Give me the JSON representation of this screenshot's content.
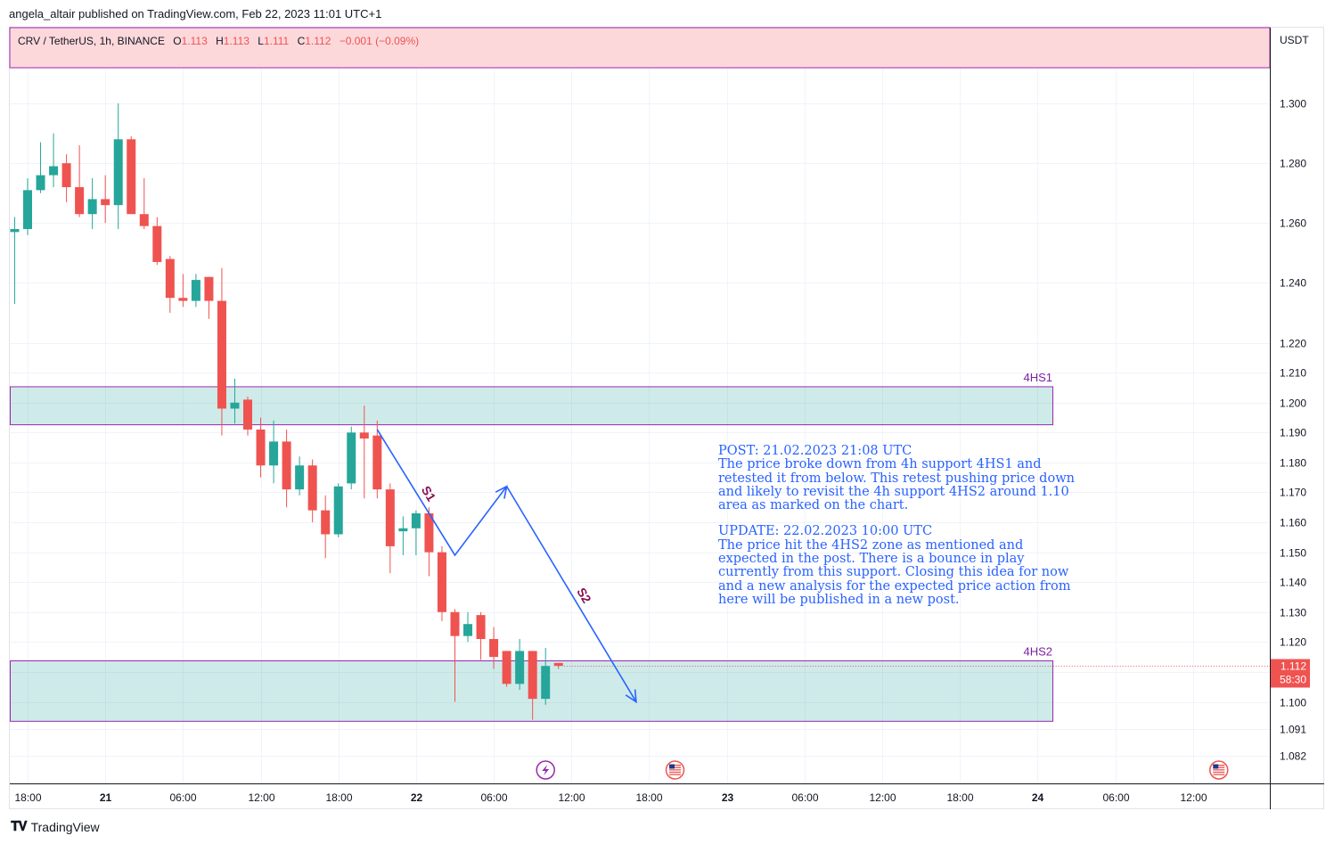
{
  "header": {
    "published_by": "angela_altair published on TradingView.com, Feb 22, 2023 11:01 UTC+1"
  },
  "legend": {
    "symbol": "CRV / TetherUS, 1h, BINANCE",
    "open_label": "O",
    "open": "1.113",
    "high_label": "H",
    "high": "1.113",
    "low_label": "L",
    "low": "1.111",
    "close_label": "C",
    "close": "1.112",
    "change": "−0.001 (−0.09%)"
  },
  "price_axis": {
    "currency": "USDT"
  },
  "last_price": {
    "value": "1.112",
    "countdown": "58:30"
  },
  "zones": [
    {
      "label": "4HS1",
      "low": 1.1926,
      "high": 1.2053,
      "color": "#26a69a"
    },
    {
      "label": "4HS2",
      "low": 1.0935,
      "high": 1.1137,
      "color": "#26a69a"
    }
  ],
  "annotations": {
    "s1": "S1",
    "s2": "S2",
    "post_title": "POST: 21.02.2023 21:08 UTC",
    "post_body": "The price broke down from 4h support 4HS1 and retested it from below. This retest pushing price down and likely to revisit the 4h support 4HS2 around 1.10 area as marked on the chart.",
    "update_title": "UPDATE: 22.02.2023 10:00 UTC",
    "update_body": "The price hit the 4HS2 zone as mentioned and expected in the post. There is a bounce in play currently from this support. Closing this idea for now and a new analysis for the expected price action from here will be published in a new post."
  },
  "branding": {
    "name": "TradingView"
  },
  "colors": {
    "up": "#26a69a",
    "down": "#ef5350",
    "arrow": "#2962ff",
    "zone_border": "#9c27b0",
    "header_band": "#fdd8db"
  },
  "event_icons": [
    "lightning-icon",
    "us-flag-icon",
    "us-flag-icon"
  ],
  "chart_data": {
    "type": "candlestick",
    "interval": "1h",
    "ylim": [
      1.078,
      1.306
    ],
    "y_ticks": [
      1.082,
      1.091,
      1.1,
      1.11,
      1.12,
      1.13,
      1.14,
      1.15,
      1.16,
      1.17,
      1.18,
      1.19,
      1.2,
      1.21,
      1.22,
      1.24,
      1.26,
      1.28,
      1.3
    ],
    "x_ticks": [
      {
        "t": "2023-02-20T18:00",
        "label": "18:00"
      },
      {
        "t": "2023-02-21T00:00",
        "label": "21"
      },
      {
        "t": "2023-02-21T06:00",
        "label": "06:00"
      },
      {
        "t": "2023-02-21T12:00",
        "label": "12:00"
      },
      {
        "t": "2023-02-21T18:00",
        "label": "18:00"
      },
      {
        "t": "2023-02-22T00:00",
        "label": "22"
      },
      {
        "t": "2023-02-22T06:00",
        "label": "06:00"
      },
      {
        "t": "2023-02-22T12:00",
        "label": "12:00"
      },
      {
        "t": "2023-02-22T18:00",
        "label": "18:00"
      },
      {
        "t": "2023-02-23T00:00",
        "label": "23"
      },
      {
        "t": "2023-02-23T06:00",
        "label": "06:00"
      },
      {
        "t": "2023-02-23T12:00",
        "label": "12:00"
      },
      {
        "t": "2023-02-23T18:00",
        "label": "18:00"
      },
      {
        "t": "2023-02-24T00:00",
        "label": "24"
      },
      {
        "t": "2023-02-24T06:00",
        "label": "06:00"
      },
      {
        "t": "2023-02-24T12:00",
        "label": "12:00"
      }
    ],
    "candles": [
      {
        "t": "2023-02-20T17:00",
        "o": 1.257,
        "h": 1.262,
        "l": 1.233,
        "c": 1.258
      },
      {
        "t": "2023-02-20T18:00",
        "o": 1.258,
        "h": 1.275,
        "l": 1.256,
        "c": 1.271
      },
      {
        "t": "2023-02-20T19:00",
        "o": 1.271,
        "h": 1.287,
        "l": 1.27,
        "c": 1.276
      },
      {
        "t": "2023-02-20T20:00",
        "o": 1.276,
        "h": 1.29,
        "l": 1.272,
        "c": 1.279
      },
      {
        "t": "2023-02-20T21:00",
        "o": 1.28,
        "h": 1.283,
        "l": 1.267,
        "c": 1.272
      },
      {
        "t": "2023-02-20T22:00",
        "o": 1.272,
        "h": 1.286,
        "l": 1.262,
        "c": 1.263
      },
      {
        "t": "2023-02-20T23:00",
        "o": 1.263,
        "h": 1.275,
        "l": 1.258,
        "c": 1.268
      },
      {
        "t": "2023-02-21T00:00",
        "o": 1.268,
        "h": 1.276,
        "l": 1.26,
        "c": 1.266
      },
      {
        "t": "2023-02-21T01:00",
        "o": 1.266,
        "h": 1.3,
        "l": 1.258,
        "c": 1.288
      },
      {
        "t": "2023-02-21T02:00",
        "o": 1.288,
        "h": 1.289,
        "l": 1.263,
        "c": 1.263
      },
      {
        "t": "2023-02-21T03:00",
        "o": 1.263,
        "h": 1.275,
        "l": 1.258,
        "c": 1.259
      },
      {
        "t": "2023-02-21T04:00",
        "o": 1.259,
        "h": 1.262,
        "l": 1.246,
        "c": 1.247
      },
      {
        "t": "2023-02-21T05:00",
        "o": 1.248,
        "h": 1.249,
        "l": 1.23,
        "c": 1.235
      },
      {
        "t": "2023-02-21T06:00",
        "o": 1.235,
        "h": 1.243,
        "l": 1.232,
        "c": 1.234
      },
      {
        "t": "2023-02-21T07:00",
        "o": 1.234,
        "h": 1.243,
        "l": 1.232,
        "c": 1.241
      },
      {
        "t": "2023-02-21T08:00",
        "o": 1.242,
        "h": 1.242,
        "l": 1.228,
        "c": 1.234
      },
      {
        "t": "2023-02-21T09:00",
        "o": 1.234,
        "h": 1.245,
        "l": 1.189,
        "c": 1.198
      },
      {
        "t": "2023-02-21T10:00",
        "o": 1.198,
        "h": 1.208,
        "l": 1.193,
        "c": 1.2
      },
      {
        "t": "2023-02-21T11:00",
        "o": 1.201,
        "h": 1.202,
        "l": 1.189,
        "c": 1.191
      },
      {
        "t": "2023-02-21T12:00",
        "o": 1.191,
        "h": 1.195,
        "l": 1.175,
        "c": 1.179
      },
      {
        "t": "2023-02-21T13:00",
        "o": 1.179,
        "h": 1.194,
        "l": 1.173,
        "c": 1.187
      },
      {
        "t": "2023-02-21T14:00",
        "o": 1.187,
        "h": 1.191,
        "l": 1.165,
        "c": 1.171
      },
      {
        "t": "2023-02-21T15:00",
        "o": 1.171,
        "h": 1.182,
        "l": 1.169,
        "c": 1.179
      },
      {
        "t": "2023-02-21T16:00",
        "o": 1.179,
        "h": 1.181,
        "l": 1.16,
        "c": 1.164
      },
      {
        "t": "2023-02-21T17:00",
        "o": 1.164,
        "h": 1.169,
        "l": 1.148,
        "c": 1.156
      },
      {
        "t": "2023-02-21T18:00",
        "o": 1.156,
        "h": 1.173,
        "l": 1.155,
        "c": 1.172
      },
      {
        "t": "2023-02-21T19:00",
        "o": 1.173,
        "h": 1.192,
        "l": 1.171,
        "c": 1.19
      },
      {
        "t": "2023-02-21T20:00",
        "o": 1.19,
        "h": 1.199,
        "l": 1.168,
        "c": 1.188
      },
      {
        "t": "2023-02-21T21:00",
        "o": 1.189,
        "h": 1.194,
        "l": 1.168,
        "c": 1.171
      },
      {
        "t": "2023-02-21T22:00",
        "o": 1.171,
        "h": 1.173,
        "l": 1.143,
        "c": 1.152
      },
      {
        "t": "2023-02-21T23:00",
        "o": 1.157,
        "h": 1.162,
        "l": 1.149,
        "c": 1.158
      },
      {
        "t": "2023-02-22T00:00",
        "o": 1.158,
        "h": 1.164,
        "l": 1.149,
        "c": 1.163
      },
      {
        "t": "2023-02-22T01:00",
        "o": 1.163,
        "h": 1.165,
        "l": 1.142,
        "c": 1.15
      },
      {
        "t": "2023-02-22T02:00",
        "o": 1.15,
        "h": 1.152,
        "l": 1.127,
        "c": 1.13
      },
      {
        "t": "2023-02-22T03:00",
        "o": 1.13,
        "h": 1.131,
        "l": 1.1,
        "c": 1.122
      },
      {
        "t": "2023-02-22T04:00",
        "o": 1.122,
        "h": 1.13,
        "l": 1.12,
        "c": 1.126
      },
      {
        "t": "2023-02-22T05:00",
        "o": 1.129,
        "h": 1.13,
        "l": 1.114,
        "c": 1.121
      },
      {
        "t": "2023-02-22T06:00",
        "o": 1.121,
        "h": 1.125,
        "l": 1.111,
        "c": 1.115
      },
      {
        "t": "2023-02-22T07:00",
        "o": 1.117,
        "h": 1.117,
        "l": 1.105,
        "c": 1.106
      },
      {
        "t": "2023-02-22T08:00",
        "o": 1.106,
        "h": 1.121,
        "l": 1.104,
        "c": 1.117
      },
      {
        "t": "2023-02-22T09:00",
        "o": 1.117,
        "h": 1.117,
        "l": 1.094,
        "c": 1.101
      },
      {
        "t": "2023-02-22T10:00",
        "o": 1.101,
        "h": 1.118,
        "l": 1.099,
        "c": 1.112
      },
      {
        "t": "2023-02-22T11:00",
        "o": 1.113,
        "h": 1.113,
        "l": 1.111,
        "c": 1.112
      }
    ],
    "arrows": [
      {
        "label": "S1",
        "points": [
          {
            "t": "2023-02-21T21:00",
            "y": 1.191
          },
          {
            "t": "2023-02-22T03:00",
            "y": 1.149
          },
          {
            "t": "2023-02-22T07:00",
            "y": 1.172
          }
        ]
      },
      {
        "label": "S2",
        "points": [
          {
            "t": "2023-02-22T07:00",
            "y": 1.172
          },
          {
            "t": "2023-02-22T17:00",
            "y": 1.1
          }
        ]
      }
    ],
    "events": [
      {
        "t": "2023-02-22T10:00",
        "icon": "lightning-icon"
      },
      {
        "t": "2023-02-22T20:00",
        "icon": "us-flag-icon"
      },
      {
        "t": "2023-02-24T14:00",
        "icon": "us-flag-icon"
      }
    ],
    "grid": true
  }
}
